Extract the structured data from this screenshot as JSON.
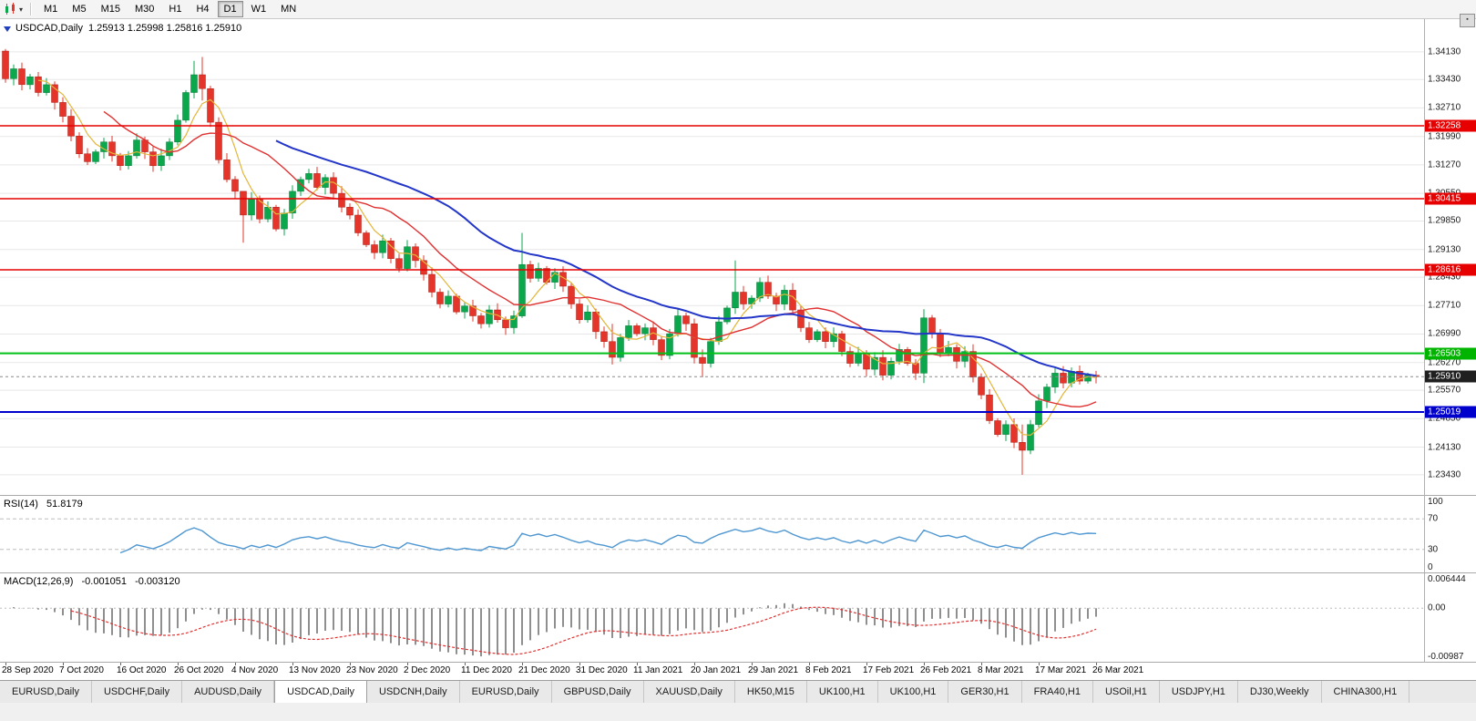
{
  "toolbar": {
    "timeframes": [
      "M1",
      "M5",
      "M15",
      "M30",
      "H1",
      "H4",
      "D1",
      "W1",
      "MN"
    ],
    "active": "D1"
  },
  "chart": {
    "symbol": "USDCAD,Daily",
    "ohlc": "1.25913 1.25998 1.25816 1.25910"
  },
  "rsi": {
    "title": "RSI(14)",
    "value": "51.8179",
    "axis": [
      "100",
      "70",
      "30",
      "0"
    ]
  },
  "macd": {
    "title": "MACD(12,26,9)",
    "value1": "-0.001051",
    "value2": "-0.003120",
    "axis": [
      "0.006444",
      "0.00",
      "-0.00987"
    ]
  },
  "price_axis": {
    "current": "1.25910",
    "ticks": [
      "1.34130",
      "1.33430",
      "1.32710",
      "1.31990",
      "1.31270",
      "1.30550",
      "1.29850",
      "1.29130",
      "1.28430",
      "1.27710",
      "1.26990",
      "1.26270",
      "1.25570",
      "1.24850",
      "1.24130",
      "1.23430"
    ]
  },
  "tabs": {
    "active_index": 3,
    "items": [
      "EURUSD,Daily",
      "USDCHF,Daily",
      "AUDUSD,Daily",
      "USDCAD,Daily",
      "USDCNH,Daily",
      "EURUSD,Daily",
      "GBPUSD,Daily",
      "XAUUSD,Daily",
      "HK50,M15",
      "UK100,H1",
      "UK100,H1",
      "GER30,H1",
      "FRA40,H1",
      "USOil,H1",
      "USDJPY,H1",
      "DJ30,Weekly",
      "CHINA300,H1"
    ]
  },
  "chart_data": {
    "type": "candlestick",
    "symbol": "USDCAD",
    "timeframe": "Daily",
    "ylim": [
      1.2292,
      1.3498
    ],
    "x_labels": [
      "28 Sep 2020",
      "7 Oct 2020",
      "16 Oct 2020",
      "26 Oct 2020",
      "4 Nov 2020",
      "13 Nov 2020",
      "23 Nov 2020",
      "2 Dec 2020",
      "11 Dec 2020",
      "21 Dec 2020",
      "31 Dec 2020",
      "11 Jan 2021",
      "20 Jan 2021",
      "29 Jan 2021",
      "8 Feb 2021",
      "17 Feb 2021",
      "26 Feb 2021",
      "8 Mar 2021",
      "17 Mar 2021",
      "26 Mar 2021"
    ],
    "bars_per_label": 7,
    "open_first": 1.3415,
    "closes": [
      1.3345,
      1.337,
      1.333,
      1.335,
      1.331,
      1.333,
      1.3285,
      1.325,
      1.32,
      1.3155,
      1.3135,
      1.316,
      1.3185,
      1.315,
      1.3125,
      1.315,
      1.319,
      1.316,
      1.3125,
      1.315,
      1.3185,
      1.324,
      1.331,
      1.3355,
      1.332,
      1.3235,
      1.314,
      1.309,
      1.306,
      1.3,
      1.304,
      1.299,
      1.302,
      1.2965,
      1.3005,
      1.306,
      1.309,
      1.3105,
      1.307,
      1.3095,
      1.3055,
      1.302,
      1.3,
      1.2955,
      1.2925,
      1.2905,
      1.2935,
      1.289,
      1.2865,
      1.292,
      1.2885,
      1.285,
      1.2805,
      1.2775,
      1.2795,
      1.2755,
      1.277,
      1.2745,
      1.2725,
      1.276,
      1.2735,
      1.2715,
      1.2745,
      1.2875,
      1.284,
      1.2865,
      1.283,
      1.2855,
      1.282,
      1.2775,
      1.2735,
      1.2755,
      1.2705,
      1.268,
      1.264,
      1.269,
      1.272,
      1.27,
      1.2715,
      1.2685,
      1.2645,
      1.27,
      1.2745,
      1.2725,
      1.264,
      1.2625,
      1.268,
      1.273,
      1.2765,
      1.2805,
      1.2775,
      1.279,
      1.283,
      1.2795,
      1.2775,
      1.281,
      1.276,
      1.2715,
      1.2685,
      1.2705,
      1.268,
      1.27,
      1.2655,
      1.2625,
      1.265,
      1.261,
      1.264,
      1.2595,
      1.263,
      1.266,
      1.2625,
      1.26,
      1.274,
      1.27,
      1.265,
      1.2665,
      1.263,
      1.2655,
      1.259,
      1.2545,
      1.248,
      1.2445,
      1.247,
      1.2425,
      1.2405,
      1.247,
      1.253,
      1.2565,
      1.26,
      1.2575,
      1.2605,
      1.258,
      1.2595,
      1.2591
    ],
    "wick_overrides": {
      "0": [
        1.342,
        1.3335
      ],
      "23": [
        1.339,
        1.3295
      ],
      "24": [
        1.34,
        1.329
      ],
      "29": [
        1.3055,
        1.293
      ],
      "63": [
        1.2955,
        1.274
      ],
      "74": [
        1.2725,
        1.2622
      ],
      "85": [
        1.266,
        1.259
      ],
      "89": [
        1.2885,
        1.275
      ],
      "112": [
        1.2762,
        1.2575
      ],
      "124": [
        1.247,
        1.2343
      ]
    },
    "current_price": 1.2591,
    "hlines": [
      {
        "label": "1.32258",
        "price": 1.32258,
        "color": "#e60000",
        "width": 1.4,
        "badge": "#e60000"
      },
      {
        "label": "1.30415",
        "price": 1.30415,
        "color": "#e60000",
        "width": 1.4,
        "badge": "#e60000"
      },
      {
        "label": "1.28616",
        "price": 1.28616,
        "color": "#e60000",
        "width": 1.4,
        "badge": "#e60000"
      },
      {
        "label": "1.26503",
        "price": 1.26503,
        "color": "#00c019",
        "width": 2,
        "badge": "#00b400"
      },
      {
        "label": "1.25019",
        "price": 1.25019,
        "color": "#0000cd",
        "width": 2,
        "badge": "#0000cd"
      }
    ],
    "moving_averages": [
      {
        "period": 5,
        "color": "#e3b53a",
        "width": 1.2
      },
      {
        "period": 13,
        "color": "#e03131",
        "width": 1.4
      },
      {
        "period": 34,
        "color": "#2336c8",
        "width": 2
      }
    ],
    "indicators": [
      {
        "name": "RSI",
        "period": 14,
        "display_value": 51.8179,
        "levels": [
          70,
          30
        ],
        "range": [
          0,
          100
        ],
        "color": "#4f97d1"
      },
      {
        "name": "MACD",
        "fast": 12,
        "slow": 26,
        "signal": 9,
        "display_values": [
          -0.001051,
          -0.00312
        ],
        "range": [
          -0.00987,
          0.006444
        ],
        "histogram_color": "#8f8f8f",
        "signal_color": "#e03131"
      }
    ],
    "colors": {
      "up": "#0aa74d",
      "down": "#e5342a"
    }
  }
}
